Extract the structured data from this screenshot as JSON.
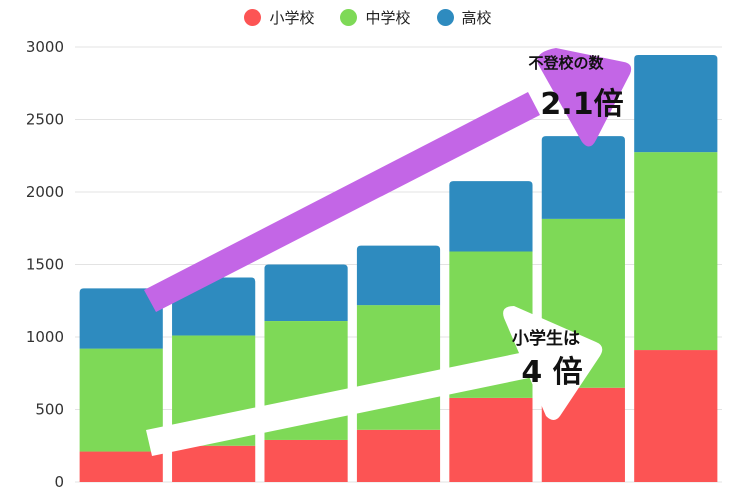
{
  "chart_data": {
    "type": "bar",
    "stacked": true,
    "categories": [
      "",
      "",
      "",
      "",
      "",
      "",
      ""
    ],
    "series": [
      {
        "name": "小学校",
        "color": "#fc5454",
        "values": [
          210,
          250,
          290,
          360,
          580,
          650,
          910
        ]
      },
      {
        "name": "中学校",
        "color": "#7ed957",
        "values": [
          710,
          760,
          820,
          860,
          1010,
          1165,
          1365
        ]
      },
      {
        "name": "高校",
        "color": "#2e8bbf",
        "values": [
          415,
          400,
          390,
          410,
          485,
          570,
          670
        ]
      }
    ],
    "ylim": [
      0,
      3000
    ],
    "yticks": [
      0,
      500,
      1000,
      1500,
      2000,
      2500,
      3000
    ],
    "ytick_labels": [
      "0",
      "500",
      "1000",
      "1500",
      "2000",
      "2500",
      "3000"
    ],
    "legend_position": "top-center",
    "grid": true,
    "annotations": [
      {
        "text_line1": "不登校の数",
        "text_line2": "2.1倍",
        "arrow_color": "#c366e6"
      },
      {
        "text_line1": "小学生は",
        "text_line2": "4 倍",
        "arrow_color": "#ffffff"
      }
    ]
  }
}
